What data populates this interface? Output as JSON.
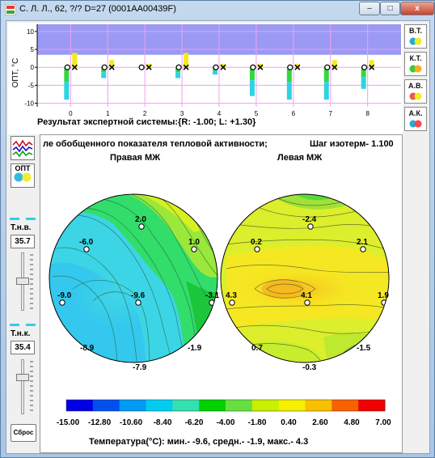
{
  "window": {
    "title": "С. Л. Л., 62, ?/? D=27 (0001AA00439F)",
    "controls": {
      "minimize": "–",
      "maximize": "□",
      "close": "x"
    }
  },
  "top_chart": {
    "y_axis_label": "ОПТ, °C",
    "y_ticks": [
      "10",
      "5",
      "0",
      "-5",
      "-10"
    ],
    "x_ticks": [
      "0",
      "1",
      "2",
      "3",
      "4",
      "5",
      "6",
      "7",
      "8"
    ],
    "band_color": "#9a9af4",
    "grid_color": "#f0a0f0",
    "chart_data": {
      "type": "bar",
      "categories": [
        "0",
        "1",
        "2",
        "3",
        "4",
        "5",
        "6",
        "7",
        "8"
      ],
      "ylim": [
        -11,
        12
      ],
      "series": [
        {
          "values": [
            4,
            2,
            1,
            4,
            1,
            1,
            1,
            2,
            2
          ]
        },
        {
          "values": [
            -9,
            -3,
            0,
            -3,
            -2,
            -8,
            -9,
            -9,
            -6
          ]
        }
      ]
    }
  },
  "expert_result": "Результат экспертной системы:{R: -1.00; L: +1.30}",
  "right_buttons": [
    "В.Т.",
    "К.Т.",
    "А.В.",
    "А.К."
  ],
  "left_panel": {
    "opt_label": "ОПТ",
    "tnv_label": "Т.н.в.",
    "tnv_value": "35.7",
    "tnk_label": "Т.н.к.",
    "tnk_value": "35.4",
    "reset_label": "Сброс"
  },
  "map": {
    "header_left": "ле обобщенного показателя тепловой активности;",
    "header_right": "Шаг изотерм- 1.100",
    "right_title": "Правая МЖ",
    "left_title": "Левая МЖ",
    "right_points": [
      "2.0",
      "-6.0",
      "1.0",
      "-9.0",
      "-9.6",
      "-3.1",
      "-8.9",
      "-1.9",
      "-7.9"
    ],
    "left_points": [
      "-2.4",
      "0.2",
      "2.1",
      "4.3",
      "4.1",
      "1.9",
      "0.7",
      "-1.5",
      "-0.3"
    ],
    "colorbar_labels": [
      "-15.00",
      "-12.80",
      "-10.60",
      "-8.40",
      "-6.20",
      "-4.00",
      "-1.80",
      "0.40",
      "2.60",
      "4.80",
      "7.00"
    ],
    "colorbar_colors": [
      "#0000e6",
      "#0050f0",
      "#0099f5",
      "#00ccf0",
      "#33e0b0",
      "#00d200",
      "#66e040",
      "#c8f000",
      "#f5f000",
      "#f8c000",
      "#f86000",
      "#f00000"
    ],
    "stats_text": "Температура(°С): мин.-   -9.6,  средн.-   -1.9,  макс.-   4.3"
  }
}
